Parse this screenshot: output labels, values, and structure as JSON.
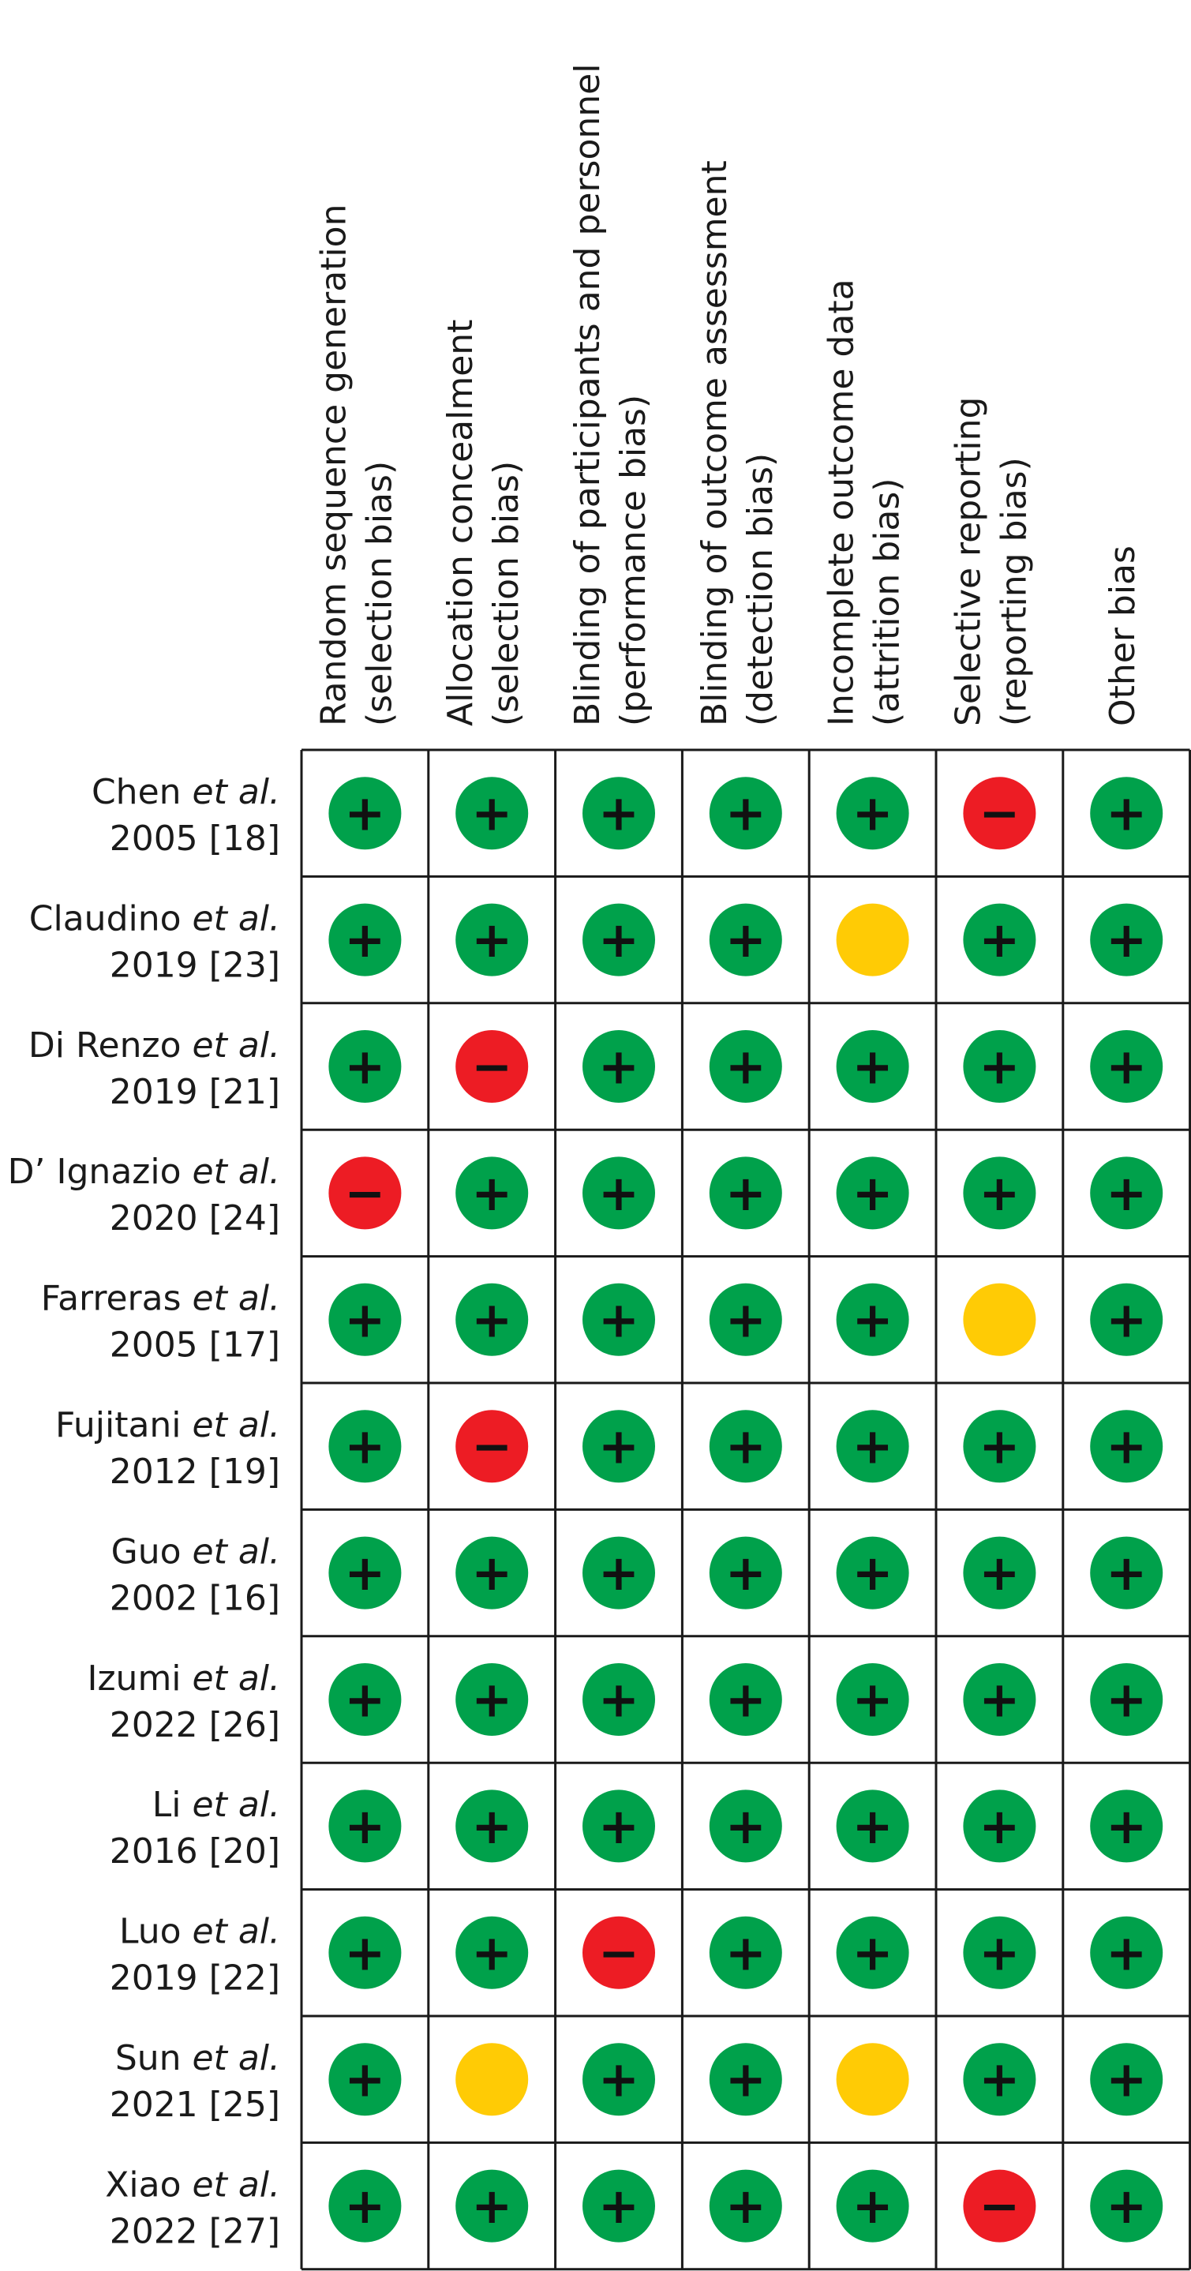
{
  "chart_data": {
    "type": "table",
    "columns": [
      {
        "line1": "Random sequence generation",
        "line2": "(selection bias)"
      },
      {
        "line1": "Allocation concealment",
        "line2": "(selection bias)"
      },
      {
        "line1": "Blinding of participants and personnel",
        "line2": "(performance bias)"
      },
      {
        "line1": "Blinding of outcome assessment",
        "line2": "(detection bias)"
      },
      {
        "line1": "Incomplete outcome data",
        "line2": "(attrition bias)"
      },
      {
        "line1": "Selective reporting",
        "line2": "(reporting bias)"
      },
      {
        "line1": "Other bias",
        "line2": ""
      }
    ],
    "rows": [
      {
        "author": "Chen",
        "etal": "et al.",
        "ref": "2005 [18]",
        "ratings": [
          "low",
          "low",
          "low",
          "low",
          "low",
          "high",
          "low"
        ]
      },
      {
        "author": "Claudino",
        "etal": "et al.",
        "ref": "2019 [23]",
        "ratings": [
          "low",
          "low",
          "low",
          "low",
          "unclear",
          "low",
          "low"
        ]
      },
      {
        "author": "Di Renzo",
        "etal": "et al.",
        "ref": "2019 [21]",
        "ratings": [
          "low",
          "high",
          "low",
          "low",
          "low",
          "low",
          "low"
        ]
      },
      {
        "author": "D’ Ignazio",
        "etal": "et al.",
        "ref": "2020 [24]",
        "ratings": [
          "high",
          "low",
          "low",
          "low",
          "low",
          "low",
          "low"
        ]
      },
      {
        "author": "Farreras",
        "etal": "et al.",
        "ref": "2005 [17]",
        "ratings": [
          "low",
          "low",
          "low",
          "low",
          "low",
          "unclear",
          "low"
        ]
      },
      {
        "author": "Fujitani",
        "etal": "et al.",
        "ref": "2012 [19]",
        "ratings": [
          "low",
          "high",
          "low",
          "low",
          "low",
          "low",
          "low"
        ]
      },
      {
        "author": "Guo",
        "etal": "et al.",
        "ref": "2002 [16]",
        "ratings": [
          "low",
          "low",
          "low",
          "low",
          "low",
          "low",
          "low"
        ]
      },
      {
        "author": "Izumi",
        "etal": "et al.",
        "ref": "2022 [26]",
        "ratings": [
          "low",
          "low",
          "low",
          "low",
          "low",
          "low",
          "low"
        ]
      },
      {
        "author": "Li",
        "etal": "et al.",
        "ref": "2016 [20]",
        "ratings": [
          "low",
          "low",
          "low",
          "low",
          "low",
          "low",
          "low"
        ]
      },
      {
        "author": "Luo",
        "etal": "et al.",
        "ref": "2019 [22]",
        "ratings": [
          "low",
          "low",
          "high",
          "low",
          "low",
          "low",
          "low"
        ]
      },
      {
        "author": "Sun",
        "etal": "et al.",
        "ref": "2021 [25]",
        "ratings": [
          "low",
          "unclear",
          "low",
          "low",
          "unclear",
          "low",
          "low"
        ]
      },
      {
        "author": "Xiao",
        "etal": "et al.",
        "ref": "2022 [27]",
        "ratings": [
          "low",
          "low",
          "low",
          "low",
          "low",
          "high",
          "low"
        ]
      }
    ],
    "legend": {
      "low": {
        "color": "#00a14b",
        "symbol": "+"
      },
      "high": {
        "color": "#ed1c24",
        "symbol": "−"
      },
      "unclear": {
        "color": "#ffcb05",
        "symbol": ""
      }
    }
  }
}
